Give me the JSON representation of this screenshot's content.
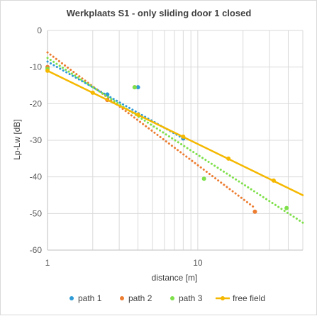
{
  "chart_data": {
    "type": "scatter",
    "title": "Werkplaats S1 - only sliding door 1 closed",
    "xlabel": "distance [m]",
    "ylabel": "Lp-Lw [dB]",
    "x_scale": "log",
    "xlim": [
      1,
      50
    ],
    "ylim": [
      -60,
      0
    ],
    "x_ticks": [
      1,
      10
    ],
    "y_ticks": [
      0,
      -10,
      -20,
      -30,
      -40,
      -50,
      -60
    ],
    "grid": "horizontal major gridlines and vertical log gridlines",
    "legend_position": "bottom",
    "series": [
      {
        "name": "path 1",
        "color": "#2e9bd6",
        "marker": "dot",
        "points": [
          [
            2.5,
            -17.5
          ],
          [
            4.0,
            -15.5
          ],
          [
            8.0,
            -29.5
          ]
        ],
        "trendline": {
          "kind": "log",
          "from": [
            1,
            -8.5
          ],
          "to": [
            8.0,
            -29.5
          ],
          "style": "dotted"
        }
      },
      {
        "name": "path 2",
        "color": "#ed7d31",
        "marker": "dot",
        "points": [
          [
            1.0,
            -10.0
          ],
          [
            2.5,
            -19.0
          ],
          [
            3.8,
            -15.5
          ],
          [
            24.0,
            -49.5
          ]
        ],
        "trendline": {
          "kind": "log",
          "from": [
            1,
            -6.0
          ],
          "to": [
            24.0,
            -48.5
          ],
          "style": "dotted"
        }
      },
      {
        "name": "path 3",
        "color": "#7ee04a",
        "marker": "dot",
        "points": [
          [
            1.0,
            -10.5
          ],
          [
            3.8,
            -15.5
          ],
          [
            11.0,
            -40.5
          ],
          [
            39.0,
            -48.5
          ]
        ],
        "trendline": {
          "kind": "log",
          "from": [
            1,
            -7.5
          ],
          "to": [
            50,
            -52.5
          ],
          "style": "dotted"
        }
      },
      {
        "name": "free field",
        "color": "#f5b800",
        "marker": "dot-line",
        "points": [
          [
            1,
            -11.0
          ],
          [
            2,
            -17.0
          ],
          [
            4,
            -23.0
          ],
          [
            8,
            -29.0
          ],
          [
            16,
            -35.0
          ],
          [
            32,
            -41.0
          ]
        ],
        "trendline": {
          "kind": "log",
          "from": [
            1,
            -11.0
          ],
          "to": [
            50,
            -45.0
          ],
          "style": "solid"
        }
      }
    ]
  }
}
